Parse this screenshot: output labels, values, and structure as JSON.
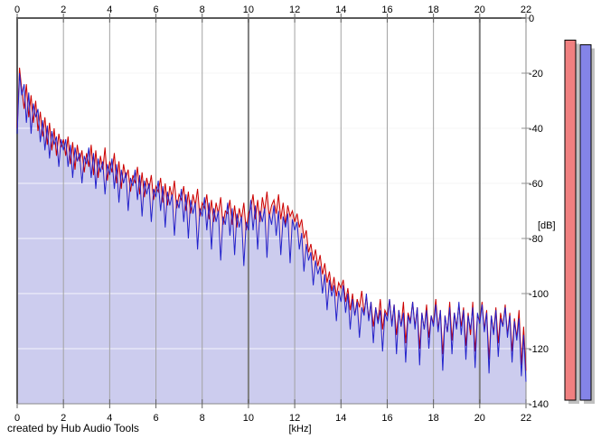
{
  "window": {
    "background": "#ffffff"
  },
  "footer": {
    "credit": "created by Hub Audio Tools"
  },
  "axes": {
    "x_unit": "[kHz]",
    "y_unit": "[dB]",
    "x_ticks": [
      0,
      2,
      4,
      6,
      8,
      10,
      12,
      14,
      16,
      18,
      20,
      22
    ],
    "y_ticks": [
      0,
      -20,
      -40,
      -60,
      -80,
      -100,
      -120,
      -140
    ],
    "x_major_every": 10
  },
  "colors": {
    "background": "#ffffff",
    "h_grid": "#c6c6c6",
    "v_grid_minor": "#a2a2a2",
    "v_grid_major": "#7e7e7e",
    "border_dark": "#5a5a5a",
    "border_light": "#8a8a8a",
    "trace_left": "#cc0000",
    "trace_right": "#2222cc",
    "fill_left": "#f6d3d3",
    "fill_right": "#ccccee",
    "meter_left_fill": "#f08080",
    "meter_right_fill": "#8484e8",
    "meter_shadow": "#c0c0c0",
    "meter_border": "#000000"
  },
  "meters": {
    "left_peak_db": -8,
    "right_peak_db": -9.7
  },
  "chart_data": {
    "type": "line",
    "title": "",
    "xlabel": "[kHz]",
    "ylabel": "[dB]",
    "xlim": [
      0,
      22
    ],
    "ylim": [
      -140,
      0
    ],
    "grid": true,
    "x_start": 0,
    "x_step": 0.1,
    "series": [
      {
        "name": "left-channel-spectrum",
        "color": "#cc0000",
        "fill": "#f6d3d3",
        "values": [
          -40,
          -18,
          -26,
          -33,
          -24,
          -36,
          -28,
          -38,
          -30,
          -41,
          -34,
          -43,
          -36,
          -46,
          -38,
          -48,
          -40,
          -50,
          -42,
          -47,
          -44,
          -50,
          -43,
          -53,
          -45,
          -55,
          -46,
          -52,
          -48,
          -56,
          -49,
          -54,
          -46,
          -57,
          -48,
          -58,
          -50,
          -55,
          -47,
          -59,
          -52,
          -56,
          -49,
          -60,
          -52,
          -62,
          -53,
          -58,
          -55,
          -63,
          -57,
          -60,
          -54,
          -64,
          -56,
          -65,
          -58,
          -62,
          -57,
          -66,
          -61,
          -63,
          -58,
          -67,
          -60,
          -68,
          -61,
          -65,
          -59,
          -69,
          -64,
          -66,
          -61,
          -70,
          -63,
          -71,
          -64,
          -68,
          -62,
          -72,
          -67,
          -69,
          -64,
          -73,
          -66,
          -74,
          -67,
          -71,
          -65,
          -75,
          -70,
          -71,
          -66,
          -75,
          -68,
          -76,
          -69,
          -73,
          -67,
          -77,
          -71,
          -69,
          -64,
          -73,
          -66,
          -74,
          -65,
          -70,
          -63,
          -72,
          -68,
          -66,
          -71,
          -64,
          -73,
          -67,
          -75,
          -68,
          -72,
          -70,
          -74,
          -71,
          -76,
          -73,
          -80,
          -77,
          -85,
          -82,
          -88,
          -84,
          -90,
          -86,
          -93,
          -89,
          -96,
          -92,
          -99,
          -94,
          -101,
          -96,
          -98,
          -95,
          -103,
          -98,
          -106,
          -100,
          -108,
          -102,
          -105,
          -99,
          -107,
          -101,
          -109,
          -103,
          -112,
          -105,
          -110,
          -102,
          -113,
          -106,
          -108,
          -102,
          -111,
          -104,
          -115,
          -106,
          -112,
          -103,
          -118,
          -107,
          -110,
          -103,
          -112,
          -105,
          -120,
          -107,
          -113,
          -104,
          -116,
          -108,
          -111,
          -102,
          -113,
          -106,
          -122,
          -108,
          -114,
          -103,
          -117,
          -107,
          -112,
          -104,
          -112,
          -105,
          -119,
          -107,
          -115,
          -103,
          -121,
          -108,
          -110,
          -103,
          -113,
          -106,
          -124,
          -108,
          -114,
          -105,
          -118,
          -107,
          -112,
          -104,
          -115,
          -107,
          -121,
          -109,
          -116,
          -106,
          -126,
          -112,
          -128
        ]
      },
      {
        "name": "right-channel-spectrum",
        "color": "#2222cc",
        "fill": "#ccccee",
        "values": [
          -42,
          -20,
          -28,
          -24,
          -38,
          -27,
          -42,
          -31,
          -36,
          -33,
          -45,
          -37,
          -48,
          -39,
          -51,
          -41,
          -46,
          -43,
          -54,
          -44,
          -48,
          -44,
          -54,
          -46,
          -58,
          -47,
          -52,
          -49,
          -60,
          -50,
          -53,
          -47,
          -58,
          -49,
          -62,
          -51,
          -56,
          -52,
          -64,
          -53,
          -57,
          -51,
          -62,
          -53,
          -67,
          -55,
          -60,
          -56,
          -70,
          -58,
          -61,
          -55,
          -66,
          -57,
          -72,
          -59,
          -64,
          -60,
          -74,
          -62,
          -65,
          -59,
          -70,
          -61,
          -76,
          -63,
          -68,
          -64,
          -79,
          -66,
          -69,
          -62,
          -74,
          -64,
          -80,
          -66,
          -71,
          -67,
          -84,
          -69,
          -72,
          -65,
          -77,
          -67,
          -84,
          -69,
          -74,
          -70,
          -88,
          -72,
          -75,
          -67,
          -79,
          -69,
          -86,
          -71,
          -76,
          -72,
          -90,
          -74,
          -77,
          -66,
          -77,
          -68,
          -84,
          -70,
          -74,
          -69,
          -87,
          -71,
          -75,
          -68,
          -79,
          -70,
          -86,
          -72,
          -76,
          -71,
          -89,
          -73,
          -77,
          -74,
          -84,
          -78,
          -92,
          -82,
          -88,
          -85,
          -97,
          -88,
          -93,
          -90,
          -100,
          -93,
          -106,
          -95,
          -101,
          -97,
          -110,
          -99,
          -103,
          -97,
          -107,
          -100,
          -113,
          -102,
          -108,
          -103,
          -116,
          -105,
          -108,
          -100,
          -110,
          -103,
          -118,
          -105,
          -111,
          -106,
          -121,
          -107,
          -110,
          -102,
          -112,
          -104,
          -122,
          -106,
          -112,
          -107,
          -125,
          -108,
          -111,
          -103,
          -113,
          -105,
          -126,
          -107,
          -113,
          -106,
          -120,
          -108,
          -112,
          -104,
          -114,
          -106,
          -128,
          -108,
          -114,
          -105,
          -122,
          -107,
          -113,
          -103,
          -115,
          -106,
          -124,
          -108,
          -113,
          -105,
          -127,
          -107,
          -111,
          -104,
          -114,
          -107,
          -129,
          -108,
          -115,
          -106,
          -123,
          -109,
          -112,
          -105,
          -116,
          -108,
          -125,
          -110,
          -117,
          -109,
          -130,
          -115,
          -132
        ]
      }
    ]
  }
}
